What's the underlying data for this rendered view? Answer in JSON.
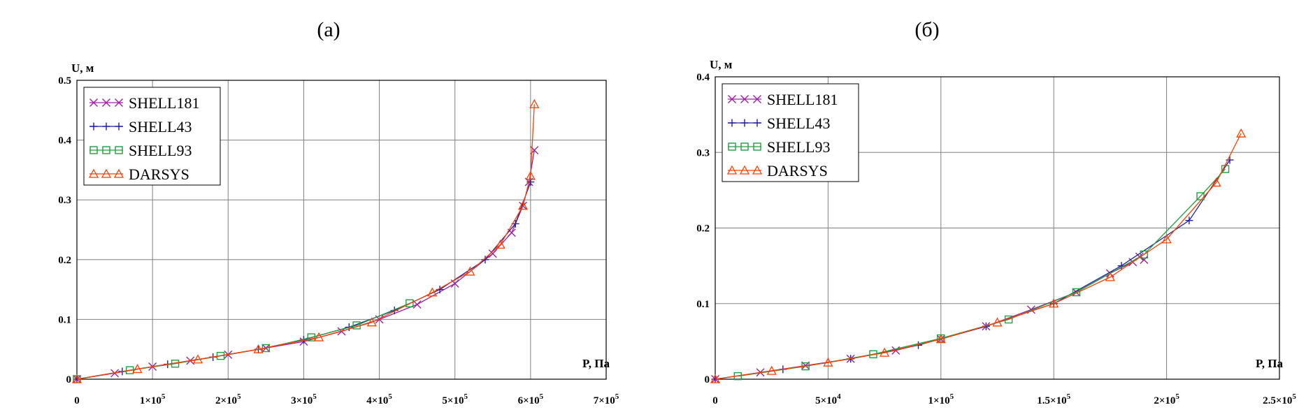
{
  "chart_data": [
    {
      "type": "line",
      "title": "(а)",
      "xlabel": "P, Па",
      "ylabel": "U, м",
      "xlim": [
        0,
        700000
      ],
      "ylim": [
        0,
        0.5
      ],
      "grid": true,
      "legend_position": "top-left",
      "x_ticks": [
        0,
        100000,
        200000,
        300000,
        400000,
        500000,
        600000,
        700000
      ],
      "x_tick_labels": [
        "0",
        "1×10^5",
        "2×10^5",
        "3×10^5",
        "4×10^5",
        "5×10^5",
        "6×10^5",
        "7×10^5"
      ],
      "y_ticks": [
        0,
        0.1,
        0.2,
        0.3,
        0.4,
        0.5
      ],
      "y_tick_labels": [
        "0",
        "0.1",
        "0.2",
        "0.3",
        "0.4",
        "0.5"
      ],
      "series": [
        {
          "name": "SHELL181",
          "marker": "x",
          "color": "#a020a0",
          "x": [
            0,
            50000,
            100000,
            150000,
            200000,
            250000,
            300000,
            350000,
            400000,
            450000,
            500000,
            550000,
            575000,
            590000,
            598000,
            605000
          ],
          "y": [
            0,
            0.01,
            0.021,
            0.031,
            0.041,
            0.052,
            0.063,
            0.08,
            0.1,
            0.125,
            0.16,
            0.21,
            0.245,
            0.29,
            0.33,
            0.383
          ]
        },
        {
          "name": "SHELL43",
          "marker": "+",
          "color": "#2020a0",
          "x": [
            0,
            60000,
            120000,
            180000,
            240000,
            300000,
            360000,
            420000,
            480000,
            540000,
            580000,
            600000
          ],
          "y": [
            0,
            0.013,
            0.025,
            0.037,
            0.05,
            0.066,
            0.087,
            0.115,
            0.15,
            0.2,
            0.26,
            0.33
          ]
        },
        {
          "name": "SHELL93",
          "marker": "square",
          "color": "#20a040",
          "x": [
            0,
            70000,
            130000,
            190000,
            250000,
            310000,
            370000,
            440000
          ],
          "y": [
            0,
            0.015,
            0.026,
            0.039,
            0.052,
            0.07,
            0.09,
            0.127
          ]
        },
        {
          "name": "DARSYS",
          "marker": "triangle",
          "color": "#ff4000",
          "x": [
            0,
            80000,
            160000,
            240000,
            320000,
            390000,
            470000,
            520000,
            560000,
            590000,
            600000,
            605000
          ],
          "y": [
            0,
            0.017,
            0.033,
            0.05,
            0.07,
            0.095,
            0.145,
            0.18,
            0.225,
            0.29,
            0.34,
            0.46
          ]
        }
      ]
    },
    {
      "type": "line",
      "title": "(б)",
      "xlabel": "P, Па",
      "ylabel": "U, м",
      "xlim": [
        0,
        250000
      ],
      "ylim": [
        0,
        0.4
      ],
      "grid": true,
      "legend_position": "top-left",
      "x_ticks": [
        0,
        50000,
        100000,
        150000,
        200000,
        250000
      ],
      "x_tick_labels": [
        "0",
        "5×10^4",
        "1×10^5",
        "1.5×10^5",
        "2×10^5",
        "2.5×10^5"
      ],
      "y_ticks": [
        0,
        0.1,
        0.2,
        0.3,
        0.4
      ],
      "y_tick_labels": [
        "0",
        "0.1",
        "0.2",
        "0.3",
        "0.4"
      ],
      "series": [
        {
          "name": "SHELL181",
          "marker": "x",
          "color": "#a020a0",
          "x": [
            0,
            20000,
            40000,
            60000,
            80000,
            100000,
            120000,
            140000,
            160000,
            175000,
            185000,
            188000,
            190000
          ],
          "y": [
            0,
            0.009,
            0.018,
            0.027,
            0.038,
            0.053,
            0.07,
            0.092,
            0.115,
            0.14,
            0.155,
            0.162,
            0.158
          ]
        },
        {
          "name": "SHELL43",
          "marker": "+",
          "color": "#2020a0",
          "x": [
            0,
            30000,
            60000,
            90000,
            120000,
            150000,
            180000,
            210000,
            228000
          ],
          "y": [
            0,
            0.013,
            0.027,
            0.045,
            0.07,
            0.1,
            0.15,
            0.21,
            0.29
          ]
        },
        {
          "name": "SHELL93",
          "marker": "square",
          "color": "#20a040",
          "x": [
            10000,
            40000,
            70000,
            100000,
            130000,
            160000,
            190000,
            215000,
            226000
          ],
          "y": [
            0.004,
            0.017,
            0.033,
            0.054,
            0.079,
            0.115,
            0.165,
            0.242,
            0.278
          ]
        },
        {
          "name": "DARSYS",
          "marker": "triangle",
          "color": "#ff4000",
          "x": [
            0,
            25000,
            50000,
            75000,
            100000,
            125000,
            150000,
            175000,
            200000,
            222000,
            233000
          ],
          "y": [
            0,
            0.011,
            0.022,
            0.035,
            0.053,
            0.075,
            0.1,
            0.135,
            0.185,
            0.26,
            0.325
          ]
        }
      ]
    }
  ]
}
